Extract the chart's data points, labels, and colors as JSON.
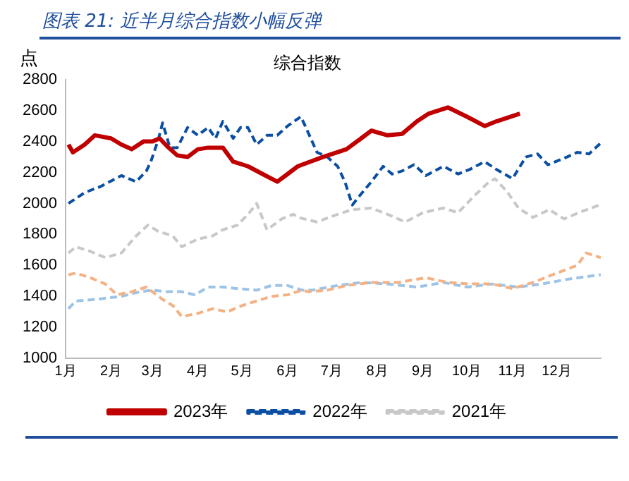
{
  "chart_data": {
    "type": "line",
    "subtitle": "图表 21: 近半月综合指数小幅反弹",
    "title": "综合指数",
    "ylabel": "点",
    "xlim": [
      "--01-01",
      "--12-31"
    ],
    "xticks": [
      {
        "value": "--01-01",
        "label": "1月"
      },
      {
        "value": "--02-01",
        "label": "2月"
      },
      {
        "value": "--03-01",
        "label": "3月"
      },
      {
        "value": "--04-01",
        "label": "4月"
      },
      {
        "value": "--05-01",
        "label": "5月"
      },
      {
        "value": "--06-01",
        "label": "6月"
      },
      {
        "value": "--07-01",
        "label": "7月"
      },
      {
        "value": "--08-01",
        "label": "8月"
      },
      {
        "value": "--09-01",
        "label": "9月"
      },
      {
        "value": "--10-01",
        "label": "10月"
      },
      {
        "value": "--11-01",
        "label": "11月"
      },
      {
        "value": "--12-01",
        "label": "12月"
      }
    ],
    "ylim": [
      1000,
      2800
    ],
    "yticks": [
      1000,
      1200,
      1400,
      1600,
      1800,
      2000,
      2200,
      2400,
      2600,
      2800
    ],
    "grid": false,
    "legend": "bottom",
    "marker": "none",
    "series": [
      {
        "name": "2023年",
        "color": "#c00000",
        "line_style": "solid",
        "x": [
          "--01-03",
          "--01-06",
          "--01-14",
          "--01-21",
          "--02-01",
          "--02-08",
          "--02-15",
          "--02-23",
          "--03-01",
          "--03-06",
          "--03-11",
          "--03-18",
          "--03-25",
          "--04-01",
          "--04-08",
          "--04-18",
          "--04-25",
          "--05-05",
          "--05-15",
          "--05-25",
          "--06-01",
          "--06-08",
          "--06-25",
          "--07-11",
          "--07-21",
          "--07-28",
          "--08-08",
          "--08-18",
          "--08-28",
          "--09-05",
          "--09-18",
          "--10-01",
          "--10-13",
          "--10-21",
          "--11-06"
        ],
        "values": [
          2380,
          2330,
          2380,
          2440,
          2420,
          2380,
          2350,
          2400,
          2400,
          2420,
          2370,
          2310,
          2300,
          2350,
          2360,
          2360,
          2270,
          2240,
          2190,
          2140,
          2190,
          2240,
          2300,
          2350,
          2420,
          2470,
          2440,
          2450,
          2530,
          2580,
          2620,
          2560,
          2500,
          2530,
          2580
        ]
      },
      {
        "name": "2022年",
        "color": "#0b4ea2",
        "line_style": "dashed",
        "x": [
          "--01-03",
          "--01-14",
          "--01-25",
          "--02-08",
          "--02-18",
          "--02-25",
          "--02-28",
          "--03-05",
          "--03-08",
          "--03-13",
          "--03-18",
          "--03-25",
          "--04-01",
          "--04-08",
          "--04-13",
          "--04-18",
          "--04-25",
          "--04-30",
          "--05-05",
          "--05-11",
          "--05-18",
          "--05-25",
          "--06-01",
          "--06-10",
          "--06-13",
          "--06-21",
          "--06-28",
          "--07-05",
          "--07-10",
          "--07-15",
          "--07-20",
          "--07-28",
          "--08-05",
          "--08-11",
          "--08-18",
          "--08-26",
          "--09-03",
          "--09-15",
          "--09-25",
          "--10-03",
          "--10-13",
          "--10-21",
          "--11-01",
          "--11-10",
          "--11-18",
          "--11-25",
          "--12-08",
          "--12-15",
          "--12-23",
          "--12-31"
        ],
        "values": [
          2000,
          2070,
          2110,
          2180,
          2140,
          2210,
          2270,
          2410,
          2520,
          2360,
          2360,
          2490,
          2440,
          2490,
          2420,
          2530,
          2420,
          2490,
          2490,
          2380,
          2440,
          2440,
          2500,
          2560,
          2500,
          2330,
          2300,
          2240,
          2140,
          1990,
          2050,
          2140,
          2240,
          2190,
          2210,
          2250,
          2180,
          2240,
          2190,
          2220,
          2270,
          2220,
          2160,
          2300,
          2320,
          2250,
          2300,
          2330,
          2320,
          2390
        ]
      },
      {
        "name": "2021年",
        "color": "#c8c8c8",
        "line_style": "dashed",
        "x": [
          "--01-03",
          "--01-08",
          "--01-18",
          "--01-28",
          "--02-08",
          "--02-18",
          "--02-26",
          "--03-05",
          "--03-15",
          "--03-21",
          "--04-01",
          "--04-11",
          "--04-18",
          "--04-28",
          "--05-06",
          "--05-11",
          "--05-18",
          "--05-28",
          "--06-05",
          "--06-08",
          "--06-21",
          "--07-05",
          "--07-15",
          "--07-28",
          "--08-08",
          "--08-20",
          "--09-01",
          "--09-15",
          "--09-25",
          "--10-06",
          "--10-15",
          "--10-20",
          "--10-28",
          "--11-05",
          "--11-15",
          "--11-26",
          "--12-06",
          "--12-16",
          "--12-30"
        ],
        "values": [
          1680,
          1720,
          1690,
          1650,
          1680,
          1790,
          1860,
          1820,
          1790,
          1720,
          1770,
          1790,
          1830,
          1860,
          1940,
          2000,
          1830,
          1900,
          1930,
          1910,
          1880,
          1930,
          1960,
          1970,
          1930,
          1880,
          1940,
          1970,
          1940,
          2050,
          2130,
          2160,
          2080,
          1970,
          1910,
          1960,
          1900,
          1940,
          1990
        ]
      },
      {
        "color": "#f4b183",
        "line_style": "dashed",
        "x": [
          "--01-03",
          "--01-08",
          "--01-18",
          "--01-28",
          "--02-05",
          "--02-15",
          "--02-25",
          "--03-01",
          "--03-08",
          "--03-15",
          "--03-21",
          "--04-01",
          "--04-11",
          "--04-21",
          "--05-01",
          "--05-11",
          "--05-21",
          "--06-01",
          "--06-11",
          "--06-15",
          "--06-28",
          "--07-11",
          "--07-28",
          "--08-15",
          "--09-03",
          "--09-18",
          "--10-03",
          "--10-18",
          "--11-01",
          "--11-15",
          "--12-01",
          "--12-15",
          "--12-21",
          "--12-31"
        ],
        "values": [
          1540,
          1550,
          1520,
          1480,
          1410,
          1430,
          1460,
          1430,
          1380,
          1340,
          1270,
          1290,
          1320,
          1300,
          1340,
          1370,
          1400,
          1410,
          1440,
          1430,
          1440,
          1470,
          1490,
          1490,
          1520,
          1490,
          1480,
          1480,
          1450,
          1490,
          1550,
          1600,
          1680,
          1650
        ]
      },
      {
        "color": "#9dc3e6",
        "line_style": "dashed",
        "x": [
          "--01-03",
          "--01-08",
          "--01-21",
          "--02-08",
          "--02-21",
          "--03-01",
          "--03-11",
          "--03-21",
          "--03-30",
          "--04-08",
          "--04-18",
          "--04-28",
          "--05-11",
          "--05-21",
          "--06-01",
          "--06-11",
          "--06-18",
          "--07-05",
          "--07-21",
          "--08-08",
          "--08-28",
          "--09-15",
          "--10-01",
          "--10-18",
          "--11-05",
          "--11-21",
          "--12-08",
          "--12-31"
        ],
        "values": [
          1320,
          1370,
          1380,
          1400,
          1430,
          1440,
          1430,
          1430,
          1410,
          1460,
          1460,
          1450,
          1440,
          1470,
          1470,
          1440,
          1440,
          1470,
          1490,
          1480,
          1460,
          1490,
          1460,
          1480,
          1460,
          1480,
          1510,
          1540
        ]
      }
    ]
  }
}
